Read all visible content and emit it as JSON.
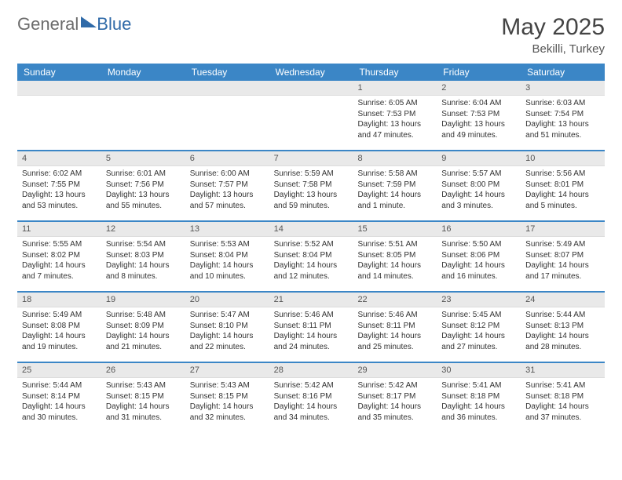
{
  "logo": {
    "part1": "General",
    "part2": "Blue"
  },
  "title": "May 2025",
  "subtitle": "Bekilli, Turkey",
  "day_header_bg": "#3b86c6",
  "week_border_color": "#3b86c6",
  "daynum_bg": "#e9e9e9",
  "body_bg": "#ffffff",
  "days": [
    "Sunday",
    "Monday",
    "Tuesday",
    "Wednesday",
    "Thursday",
    "Friday",
    "Saturday"
  ],
  "weeks": [
    [
      {
        "n": "",
        "sr": "",
        "ss": "",
        "dl1": "",
        "dl2": ""
      },
      {
        "n": "",
        "sr": "",
        "ss": "",
        "dl1": "",
        "dl2": ""
      },
      {
        "n": "",
        "sr": "",
        "ss": "",
        "dl1": "",
        "dl2": ""
      },
      {
        "n": "",
        "sr": "",
        "ss": "",
        "dl1": "",
        "dl2": ""
      },
      {
        "n": "1",
        "sr": "Sunrise: 6:05 AM",
        "ss": "Sunset: 7:53 PM",
        "dl1": "Daylight: 13 hours",
        "dl2": "and 47 minutes."
      },
      {
        "n": "2",
        "sr": "Sunrise: 6:04 AM",
        "ss": "Sunset: 7:53 PM",
        "dl1": "Daylight: 13 hours",
        "dl2": "and 49 minutes."
      },
      {
        "n": "3",
        "sr": "Sunrise: 6:03 AM",
        "ss": "Sunset: 7:54 PM",
        "dl1": "Daylight: 13 hours",
        "dl2": "and 51 minutes."
      }
    ],
    [
      {
        "n": "4",
        "sr": "Sunrise: 6:02 AM",
        "ss": "Sunset: 7:55 PM",
        "dl1": "Daylight: 13 hours",
        "dl2": "and 53 minutes."
      },
      {
        "n": "5",
        "sr": "Sunrise: 6:01 AM",
        "ss": "Sunset: 7:56 PM",
        "dl1": "Daylight: 13 hours",
        "dl2": "and 55 minutes."
      },
      {
        "n": "6",
        "sr": "Sunrise: 6:00 AM",
        "ss": "Sunset: 7:57 PM",
        "dl1": "Daylight: 13 hours",
        "dl2": "and 57 minutes."
      },
      {
        "n": "7",
        "sr": "Sunrise: 5:59 AM",
        "ss": "Sunset: 7:58 PM",
        "dl1": "Daylight: 13 hours",
        "dl2": "and 59 minutes."
      },
      {
        "n": "8",
        "sr": "Sunrise: 5:58 AM",
        "ss": "Sunset: 7:59 PM",
        "dl1": "Daylight: 14 hours",
        "dl2": "and 1 minute."
      },
      {
        "n": "9",
        "sr": "Sunrise: 5:57 AM",
        "ss": "Sunset: 8:00 PM",
        "dl1": "Daylight: 14 hours",
        "dl2": "and 3 minutes."
      },
      {
        "n": "10",
        "sr": "Sunrise: 5:56 AM",
        "ss": "Sunset: 8:01 PM",
        "dl1": "Daylight: 14 hours",
        "dl2": "and 5 minutes."
      }
    ],
    [
      {
        "n": "11",
        "sr": "Sunrise: 5:55 AM",
        "ss": "Sunset: 8:02 PM",
        "dl1": "Daylight: 14 hours",
        "dl2": "and 7 minutes."
      },
      {
        "n": "12",
        "sr": "Sunrise: 5:54 AM",
        "ss": "Sunset: 8:03 PM",
        "dl1": "Daylight: 14 hours",
        "dl2": "and 8 minutes."
      },
      {
        "n": "13",
        "sr": "Sunrise: 5:53 AM",
        "ss": "Sunset: 8:04 PM",
        "dl1": "Daylight: 14 hours",
        "dl2": "and 10 minutes."
      },
      {
        "n": "14",
        "sr": "Sunrise: 5:52 AM",
        "ss": "Sunset: 8:04 PM",
        "dl1": "Daylight: 14 hours",
        "dl2": "and 12 minutes."
      },
      {
        "n": "15",
        "sr": "Sunrise: 5:51 AM",
        "ss": "Sunset: 8:05 PM",
        "dl1": "Daylight: 14 hours",
        "dl2": "and 14 minutes."
      },
      {
        "n": "16",
        "sr": "Sunrise: 5:50 AM",
        "ss": "Sunset: 8:06 PM",
        "dl1": "Daylight: 14 hours",
        "dl2": "and 16 minutes."
      },
      {
        "n": "17",
        "sr": "Sunrise: 5:49 AM",
        "ss": "Sunset: 8:07 PM",
        "dl1": "Daylight: 14 hours",
        "dl2": "and 17 minutes."
      }
    ],
    [
      {
        "n": "18",
        "sr": "Sunrise: 5:49 AM",
        "ss": "Sunset: 8:08 PM",
        "dl1": "Daylight: 14 hours",
        "dl2": "and 19 minutes."
      },
      {
        "n": "19",
        "sr": "Sunrise: 5:48 AM",
        "ss": "Sunset: 8:09 PM",
        "dl1": "Daylight: 14 hours",
        "dl2": "and 21 minutes."
      },
      {
        "n": "20",
        "sr": "Sunrise: 5:47 AM",
        "ss": "Sunset: 8:10 PM",
        "dl1": "Daylight: 14 hours",
        "dl2": "and 22 minutes."
      },
      {
        "n": "21",
        "sr": "Sunrise: 5:46 AM",
        "ss": "Sunset: 8:11 PM",
        "dl1": "Daylight: 14 hours",
        "dl2": "and 24 minutes."
      },
      {
        "n": "22",
        "sr": "Sunrise: 5:46 AM",
        "ss": "Sunset: 8:11 PM",
        "dl1": "Daylight: 14 hours",
        "dl2": "and 25 minutes."
      },
      {
        "n": "23",
        "sr": "Sunrise: 5:45 AM",
        "ss": "Sunset: 8:12 PM",
        "dl1": "Daylight: 14 hours",
        "dl2": "and 27 minutes."
      },
      {
        "n": "24",
        "sr": "Sunrise: 5:44 AM",
        "ss": "Sunset: 8:13 PM",
        "dl1": "Daylight: 14 hours",
        "dl2": "and 28 minutes."
      }
    ],
    [
      {
        "n": "25",
        "sr": "Sunrise: 5:44 AM",
        "ss": "Sunset: 8:14 PM",
        "dl1": "Daylight: 14 hours",
        "dl2": "and 30 minutes."
      },
      {
        "n": "26",
        "sr": "Sunrise: 5:43 AM",
        "ss": "Sunset: 8:15 PM",
        "dl1": "Daylight: 14 hours",
        "dl2": "and 31 minutes."
      },
      {
        "n": "27",
        "sr": "Sunrise: 5:43 AM",
        "ss": "Sunset: 8:15 PM",
        "dl1": "Daylight: 14 hours",
        "dl2": "and 32 minutes."
      },
      {
        "n": "28",
        "sr": "Sunrise: 5:42 AM",
        "ss": "Sunset: 8:16 PM",
        "dl1": "Daylight: 14 hours",
        "dl2": "and 34 minutes."
      },
      {
        "n": "29",
        "sr": "Sunrise: 5:42 AM",
        "ss": "Sunset: 8:17 PM",
        "dl1": "Daylight: 14 hours",
        "dl2": "and 35 minutes."
      },
      {
        "n": "30",
        "sr": "Sunrise: 5:41 AM",
        "ss": "Sunset: 8:18 PM",
        "dl1": "Daylight: 14 hours",
        "dl2": "and 36 minutes."
      },
      {
        "n": "31",
        "sr": "Sunrise: 5:41 AM",
        "ss": "Sunset: 8:18 PM",
        "dl1": "Daylight: 14 hours",
        "dl2": "and 37 minutes."
      }
    ]
  ]
}
